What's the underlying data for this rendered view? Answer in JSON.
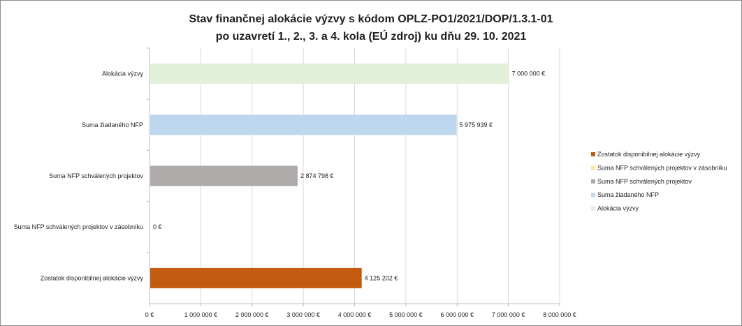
{
  "chart_data": {
    "type": "bar",
    "orientation": "horizontal",
    "title_line1": "Stav finančnej alokácie výzvy s kódom OPLZ-PO1/2021/DOP/1.3.1-01",
    "title_line2": "po uzavretí 1., 2., 3. a 4. kola (EÚ zdroj) ku dňu 29. 10. 2021",
    "categories": [
      "Alokácia výzvy",
      "Suma žiadaného NFP",
      "Suma NFP schválených projektov",
      "Suma NFP schválených projektov v zásobníku",
      "Zostatok disponibilnej alokácie výzvy"
    ],
    "values": [
      7000000,
      5975939,
      2874798,
      0,
      4125202
    ],
    "data_labels": [
      "7 000 000 €",
      "5 975 939 €",
      "2 874 798 €",
      "0 €",
      "4 125 202 €"
    ],
    "colors": [
      "#e2efd9",
      "#bdd7ee",
      "#aeaaaa",
      "#ffe699",
      "#c55a11"
    ],
    "xlim": [
      0,
      8000000
    ],
    "x_ticks": [
      0,
      1000000,
      2000000,
      3000000,
      4000000,
      5000000,
      6000000,
      7000000,
      8000000
    ],
    "x_tick_labels": [
      "0 €",
      "1 000 000 €",
      "2 000 000 €",
      "3 000 000 €",
      "4 000 000 €",
      "5 000 000 €",
      "6 000 000 €",
      "7 000 000 €",
      "8 000 000 €"
    ],
    "grid": true,
    "legend_position": "right",
    "legend": [
      {
        "label": "Zostatok disponibilnej alokácie výzvy",
        "color": "#c55a11"
      },
      {
        "label": "Suma NFP schválených projektov v zásobníku",
        "color": "#ffe699"
      },
      {
        "label": "Suma NFP schválených projektov",
        "color": "#aeaaaa"
      },
      {
        "label": "Suma žiadaného NFP",
        "color": "#bdd7ee"
      },
      {
        "label": "Alokácia výzvy",
        "color": "#e2efd9"
      }
    ]
  }
}
